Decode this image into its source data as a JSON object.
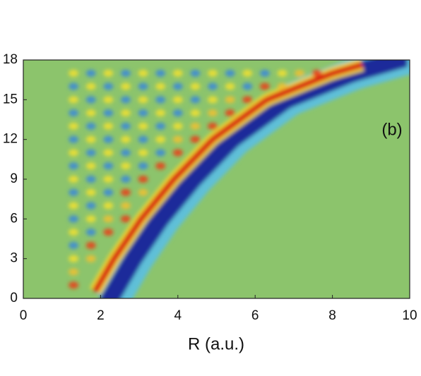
{
  "chart_data": {
    "type": "heatmap",
    "xlabel": "R (a.u.)",
    "annotation": "(b)",
    "xlim": [
      0,
      10
    ],
    "xticks": [
      0,
      2,
      4,
      6,
      8,
      10
    ],
    "ylim": [
      0,
      18
    ],
    "yticks": [
      0,
      3,
      6,
      9,
      12,
      15,
      18
    ]
  }
}
